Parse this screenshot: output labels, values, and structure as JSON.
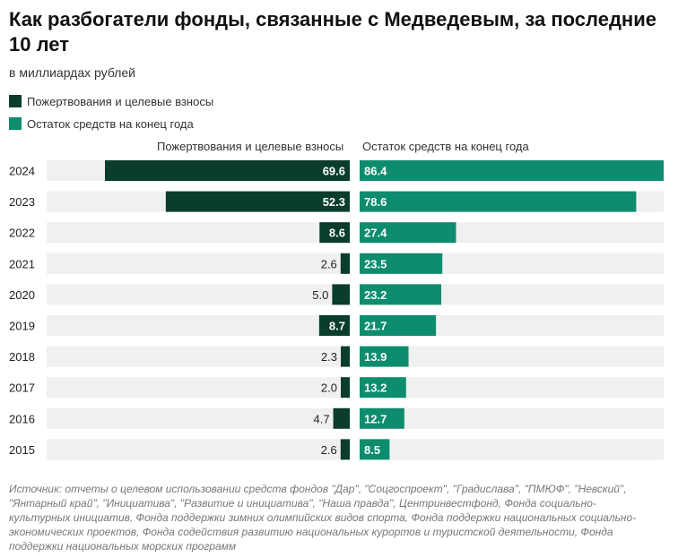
{
  "title": "Как разбогатели фонды, связанные с Медведевым, за последние 10 лет",
  "subtitle": "в миллиардах рублей",
  "colors": {
    "donations": "#0a3d2a",
    "balance": "#0e8c6e",
    "track": "#f0f0f0"
  },
  "chart_data": {
    "type": "bar",
    "categories": [
      "2024",
      "2023",
      "2022",
      "2021",
      "2020",
      "2019",
      "2018",
      "2017",
      "2016",
      "2015"
    ],
    "series": [
      {
        "name": "Пожертвования и целевые взносы",
        "values": [
          69.6,
          52.3,
          8.6,
          2.6,
          5.0,
          8.7,
          2.3,
          2.0,
          4.7,
          2.6
        ],
        "labels": [
          "69.6",
          "52.3",
          "8.6",
          "2.6",
          "5.0",
          "8.7",
          "2.3",
          "2.0",
          "4.7",
          "2.6"
        ]
      },
      {
        "name": "Остаток средств на конец года",
        "values": [
          86.4,
          78.6,
          27.4,
          23.5,
          23.2,
          21.7,
          13.9,
          13.2,
          12.7,
          8.5
        ],
        "labels": [
          "86.4",
          "78.6",
          "27.4",
          "23.5",
          "23.2",
          "21.7",
          "13.9",
          "13.2",
          "12.7",
          "8.5"
        ]
      }
    ],
    "legend": {
      "position": "top-left",
      "entries": [
        "Пожертвования и целевые взносы",
        "Остаток средств на конец года"
      ]
    },
    "column_headers": [
      "Пожертвования и целевые взносы",
      "Остаток средств на конец года"
    ]
  },
  "source": "Источник: отчеты о целевом использовании средств фондов \"Дар\", \"Соцгоспроект\", \"Градислава\", \"ПМЮФ\", \"Невский\", \"Янтарный край\", \"Инициатива\", \"Развитие и инициатива\", \"Наша правда\", Центринвестфонд, Фонда социально-культурных инициатив, Фонда поддержки зимних олимпийских видов спорта, Фонда поддержки национальных социально-экономических проектов, Фонда содействия развитию национальных курортов и туристской деятельности, Фонда поддержки национальных морских программ"
}
